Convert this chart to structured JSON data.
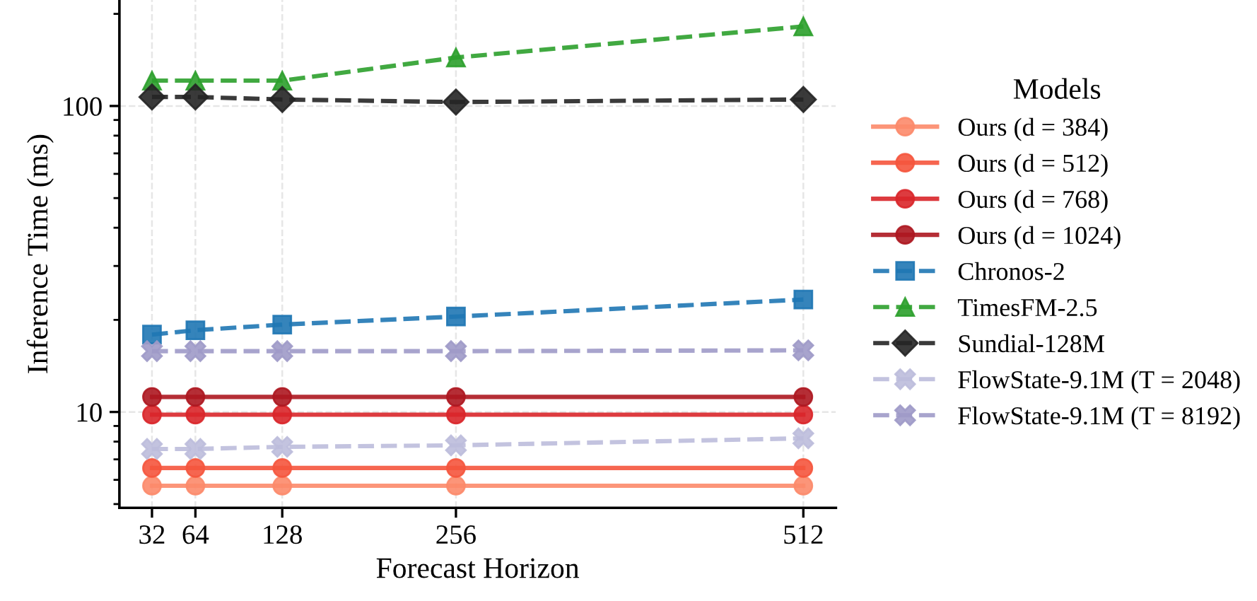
{
  "chart_data": {
    "type": "line",
    "xlabel": "Forecast Horizon",
    "ylabel": "Inference Time (ms)",
    "legend_title": "Models",
    "x": [
      32,
      64,
      128,
      256,
      512
    ],
    "xlim": [
      8,
      536
    ],
    "xticks": [
      32,
      64,
      128,
      256,
      512
    ],
    "log": "y",
    "ylim": [
      4.86,
      222
    ],
    "yticks": [
      10,
      100
    ],
    "grid": true,
    "legend": "right",
    "series": [
      {
        "name": "Ours (d = 384)",
        "color": "#fc8a6a",
        "marker": "circle",
        "line_style": "solid",
        "values": [
          5.74,
          5.74,
          5.74,
          5.74,
          5.74
        ]
      },
      {
        "name": "Ours (d = 512)",
        "color": "#f5553d",
        "marker": "circle",
        "line_style": "solid",
        "values": [
          6.56,
          6.56,
          6.56,
          6.56,
          6.56
        ]
      },
      {
        "name": "Ours (d = 768)",
        "color": "#d9262a",
        "marker": "circle",
        "line_style": "solid",
        "values": [
          9.8,
          9.8,
          9.8,
          9.8,
          9.8
        ]
      },
      {
        "name": "Ours (d = 1024)",
        "color": "#ad1720",
        "marker": "circle",
        "line_style": "solid",
        "values": [
          11.2,
          11.2,
          11.2,
          11.2,
          11.2
        ]
      },
      {
        "name": "Chronos-2",
        "color": "#1f77b4",
        "marker": "square",
        "line_style": "dashed",
        "values": [
          17.9,
          18.5,
          19.3,
          20.5,
          23.3
        ]
      },
      {
        "name": "TimesFM-2.5",
        "color": "#2ca02c",
        "marker": "triangle",
        "line_style": "dashed",
        "values": [
          121,
          121,
          121,
          144,
          182
        ]
      },
      {
        "name": "Sundial-128M",
        "color": "#252525",
        "marker": "diamond",
        "line_style": "dashed",
        "values": [
          107,
          107,
          105,
          103,
          105
        ]
      },
      {
        "name": "FlowState-9.1M (T = 2048)",
        "color": "#bcbddc",
        "marker": "cross",
        "line_style": "dashed",
        "values": [
          7.57,
          7.57,
          7.69,
          7.78,
          8.2
        ]
      },
      {
        "name": "FlowState-9.1M (T = 8192)",
        "color": "#9e9ac8",
        "marker": "cross",
        "line_style": "dashed",
        "values": [
          15.8,
          15.8,
          15.8,
          15.8,
          15.9
        ]
      }
    ]
  }
}
